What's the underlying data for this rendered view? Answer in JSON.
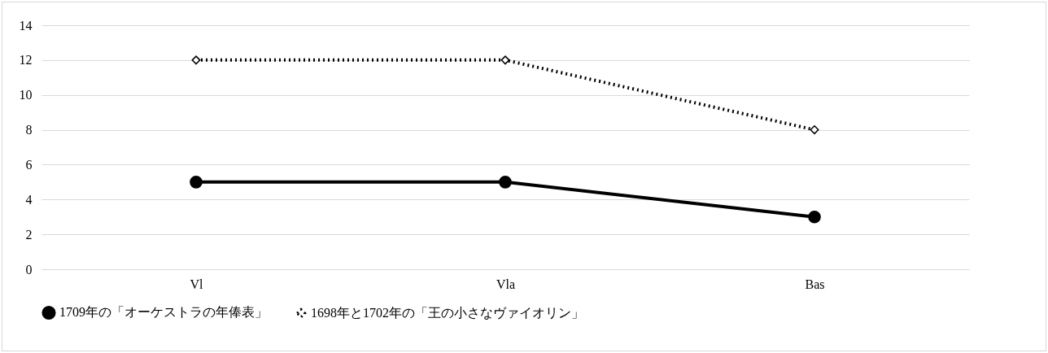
{
  "chart_data": {
    "type": "line",
    "categories": [
      "Vl",
      "Vla",
      "Bas"
    ],
    "series": [
      {
        "name": "1709年の「オーケストラの年俸表」",
        "color": "#000000",
        "values": [
          5,
          5,
          3
        ],
        "marker": "circle",
        "line_style": "solid"
      },
      {
        "name": "1698年と1702年の「王の小さなヴァイオリン」",
        "color": "#000000",
        "values": [
          12,
          12,
          8
        ],
        "marker": "diamond",
        "line_style": "dotted"
      }
    ],
    "ylim": [
      0,
      14
    ],
    "yticks": [
      0,
      2,
      4,
      6,
      8,
      10,
      12,
      14
    ],
    "grid": "y",
    "legend": "bottom"
  }
}
